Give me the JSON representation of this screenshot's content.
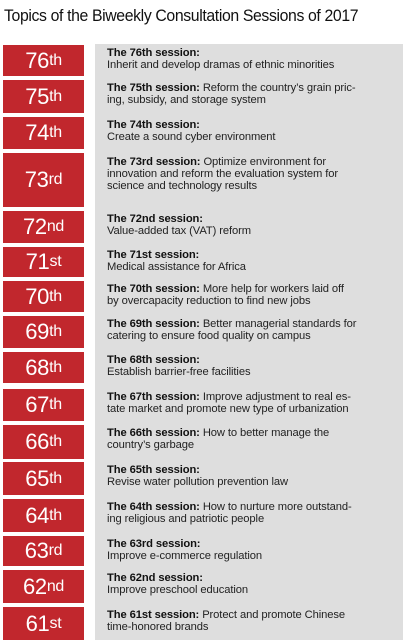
{
  "title": "Topics of the Biweekly Consultation Sessions of 2017",
  "colors": {
    "badge": "#c1272d",
    "panel": "#dedede"
  },
  "sessions": [
    {
      "num": "76",
      "suffix": "th",
      "label": "The 76th session:",
      "lines": [
        "Inherit and develop dramas of ethnic minorities"
      ]
    },
    {
      "num": "75",
      "suffix": "th",
      "label": "The 75th session:",
      "lines": [
        " Reform the country’s grain pric-",
        "ing, subsidy, and storage system"
      ]
    },
    {
      "num": "74",
      "suffix": "th",
      "label": "The 74th session:",
      "lines": [
        "Create a sound cyber environment"
      ]
    },
    {
      "num": "73",
      "suffix": "rd",
      "label": "The 73rd session:",
      "lines": [
        " Optimize environment for",
        "innovation and reform the evaluation system for",
        "science and technology results"
      ]
    },
    {
      "num": "72",
      "suffix": "nd",
      "label": "The 72nd session:",
      "lines": [
        "Value-added tax (VAT) reform"
      ]
    },
    {
      "num": "71",
      "suffix": "st",
      "label": "The 71st session:",
      "lines": [
        "Medical assistance for Africa"
      ]
    },
    {
      "num": "70",
      "suffix": "th",
      "label": "The 70th session:",
      "lines": [
        " More help for workers laid off",
        "by overcapacity reduction to find new jobs"
      ]
    },
    {
      "num": "69",
      "suffix": "th",
      "label": "The 69th session:",
      "lines": [
        " Better managerial standards for",
        "catering to ensure food quality on campus"
      ]
    },
    {
      "num": "68",
      "suffix": "th",
      "label": "The 68th session:",
      "lines": [
        "Establish barrier-free facilities"
      ]
    },
    {
      "num": "67",
      "suffix": "th",
      "label": "The 67th session:",
      "lines": [
        " Improve adjustment to real es-",
        "tate market and promote new type of urbanization"
      ]
    },
    {
      "num": "66",
      "suffix": "th",
      "label": "The 66th session:",
      "lines": [
        " How to better manage the",
        "country’s garbage"
      ]
    },
    {
      "num": "65",
      "suffix": "th",
      "label": "The 65th session:",
      "lines": [
        "Revise water pollution prevention law"
      ]
    },
    {
      "num": "64",
      "suffix": "th",
      "label": "The 64th session:",
      "lines": [
        " How to nurture more outstand-",
        "ing religious and patriotic people"
      ]
    },
    {
      "num": "63",
      "suffix": "rd",
      "label": "The 63rd session:",
      "lines": [
        "Improve e-commerce regulation"
      ]
    },
    {
      "num": "62",
      "suffix": "nd",
      "label": "The 62nd session:",
      "lines": [
        "Improve preschool education"
      ]
    },
    {
      "num": "61",
      "suffix": "st",
      "label": "The 61st session:",
      "lines": [
        " Protect and promote Chinese",
        "time-honored brands"
      ]
    }
  ]
}
